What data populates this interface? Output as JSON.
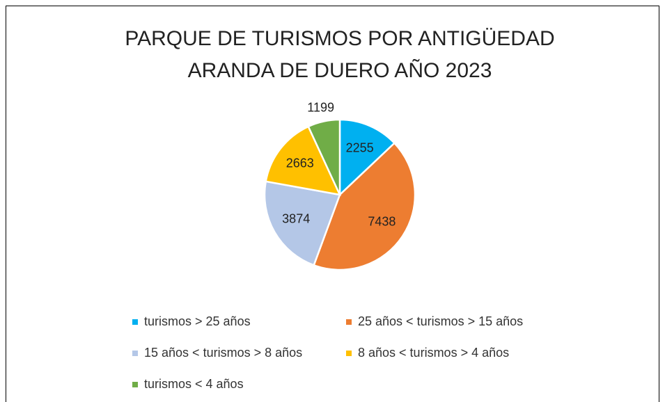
{
  "chart_data": {
    "type": "pie",
    "title": [
      "PARQUE DE TURISMOS POR ANTIGÜEDAD",
      "ARANDA DE DUERO AÑO 2023"
    ],
    "categories": [
      "turismos > 25 años",
      "25 años < turismos > 15 años",
      "15 años < turismos > 8 años",
      "8 años < turismos > 4 años",
      "turismos < 4 años"
    ],
    "values": [
      2255,
      7438,
      3874,
      2663,
      1199
    ],
    "colors": [
      "#00b0f0",
      "#ed7d31",
      "#b4c7e7",
      "#ffc000",
      "#70ad47"
    ],
    "legend": "bottom"
  }
}
